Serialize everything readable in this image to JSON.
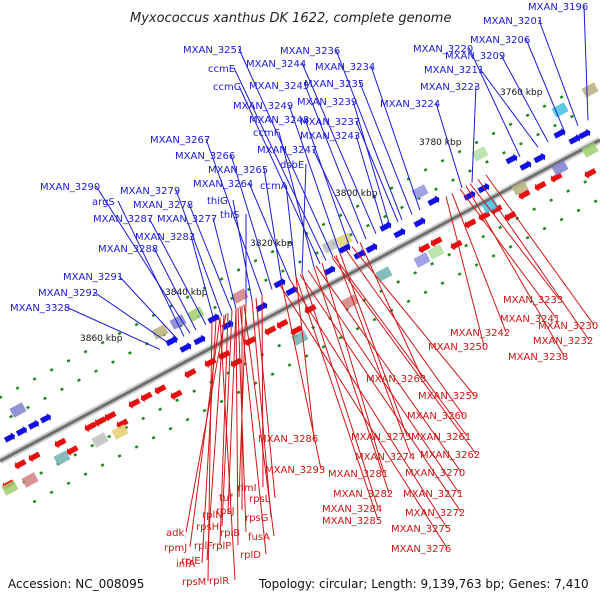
{
  "title": "Myxococcus xanthus DK 1622, complete genome",
  "footer": {
    "accession": "Accession: NC_008095",
    "stats": "Topology: circular; Length: 9,139,763 bp; Genes: 7,410"
  },
  "colors": {
    "forward_strand": "#1010e6",
    "reverse_strand": "#e60f0f",
    "backbone": "#6f6f6f",
    "tick": "#1a8a1a"
  },
  "scale_labels": [
    "3760 kbp",
    "3780 kbp",
    "3800 kbp",
    "3820 kbp",
    "3840 kbp",
    "3860 kbp"
  ],
  "forward_genes": [
    "MXAN_3196",
    "MXAN_3201",
    "MXAN_3206",
    "MXAN_3209",
    "MXAN_3211",
    "MXAN_3220",
    "MXAN_3223",
    "MXAN_3224",
    "MXAN_3234",
    "MXAN_3235",
    "MXAN_3236",
    "MXAN_3237",
    "MXAN_3239",
    "MXAN_3243",
    "MXAN_3244",
    "MXAN_3245",
    "MXAN_3247",
    "MXAN_3248",
    "MXAN_3249",
    "MXAN_3251",
    "ccmE",
    "ccmC",
    "ccmF",
    "dsbE",
    "ccmA",
    "MXAN_3264",
    "MXAN_3265",
    "MXAN_3266",
    "MXAN_3267",
    "thiG",
    "thiS",
    "MXAN_3277",
    "MXAN_3278",
    "MXAN_3279",
    "MXAN_3283",
    "MXAN_3287",
    "MXAN_3288",
    "MXAN_3290",
    "argS",
    "MXAN_3291",
    "MXAN_3292",
    "MXAN_3328"
  ],
  "reverse_genes": [
    "MXAN_3233",
    "MXAN_3241",
    "MXAN_3230",
    "MXAN_3242",
    "MXAN_3232",
    "MXAN_3250",
    "MXAN_3238",
    "MXAN_3263",
    "MXAN_3259",
    "MXAN_3260",
    "MXAN_3286",
    "MXAN_3273",
    "MXAN_3261",
    "MXAN_3274",
    "MXAN_3262",
    "MXAN_3281",
    "MXAN_3270",
    "MXAN_3293",
    "rimI",
    "rpsL",
    "tuf",
    "MXAN_3282",
    "MXAN_3271",
    "rpsJ",
    "rpsG",
    "rplN",
    "MXAN_3284",
    "MXAN_3272",
    "rpsH",
    "rplB",
    "MXAN_3285",
    "MXAN_3275",
    "adk",
    "rplF",
    "fusA",
    "rpmJ",
    "rplP",
    "MXAN_3276",
    "rplE",
    "rplD",
    "infA",
    "rpsM",
    "rplR"
  ]
}
